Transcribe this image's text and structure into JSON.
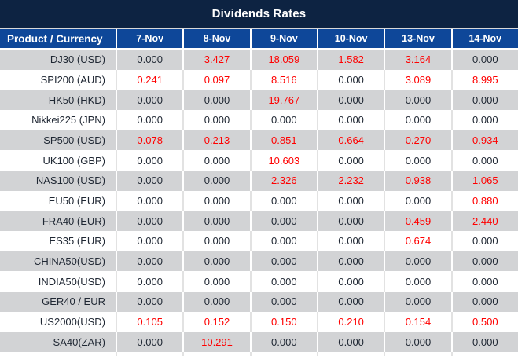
{
  "title": "Dividends Rates",
  "table": {
    "product_header": "Product / Currency",
    "date_headers": [
      "7-Nov",
      "8-Nov",
      "9-Nov",
      "10-Nov",
      "13-Nov",
      "14-Nov"
    ],
    "rows": [
      {
        "product": "DJ30 (USD)",
        "values": [
          "0.000",
          "3.427",
          "18.059",
          "1.582",
          "3.164",
          "0.000"
        ]
      },
      {
        "product": "SPI200 (AUD)",
        "values": [
          "0.241",
          "0.097",
          "8.516",
          "0.000",
          "3.089",
          "8.995"
        ]
      },
      {
        "product": "HK50 (HKD)",
        "values": [
          "0.000",
          "0.000",
          "19.767",
          "0.000",
          "0.000",
          "0.000"
        ]
      },
      {
        "product": "Nikkei225 (JPN)",
        "values": [
          "0.000",
          "0.000",
          "0.000",
          "0.000",
          "0.000",
          "0.000"
        ]
      },
      {
        "product": "SP500 (USD)",
        "values": [
          "0.078",
          "0.213",
          "0.851",
          "0.664",
          "0.270",
          "0.934"
        ]
      },
      {
        "product": "UK100 (GBP)",
        "values": [
          "0.000",
          "0.000",
          "10.603",
          "0.000",
          "0.000",
          "0.000"
        ]
      },
      {
        "product": "NAS100 (USD)",
        "values": [
          "0.000",
          "0.000",
          "2.326",
          "2.232",
          "0.938",
          "1.065"
        ]
      },
      {
        "product": "EU50 (EUR)",
        "values": [
          "0.000",
          "0.000",
          "0.000",
          "0.000",
          "0.000",
          "0.880"
        ]
      },
      {
        "product": "FRA40 (EUR)",
        "values": [
          "0.000",
          "0.000",
          "0.000",
          "0.000",
          "0.459",
          "2.440"
        ]
      },
      {
        "product": "ES35 (EUR)",
        "values": [
          "0.000",
          "0.000",
          "0.000",
          "0.000",
          "0.674",
          "0.000"
        ]
      },
      {
        "product": "CHINA50(USD)",
        "values": [
          "0.000",
          "0.000",
          "0.000",
          "0.000",
          "0.000",
          "0.000"
        ]
      },
      {
        "product": "INDIA50(USD)",
        "values": [
          "0.000",
          "0.000",
          "0.000",
          "0.000",
          "0.000",
          "0.000"
        ]
      },
      {
        "product": "GER40 / EUR",
        "values": [
          "0.000",
          "0.000",
          "0.000",
          "0.000",
          "0.000",
          "0.000"
        ]
      },
      {
        "product": "US2000(USD)",
        "values": [
          "0.105",
          "0.152",
          "0.150",
          "0.210",
          "0.154",
          "0.500"
        ]
      },
      {
        "product": "SA40(ZAR)",
        "values": [
          "0.000",
          "10.291",
          "0.000",
          "0.000",
          "0.000",
          "0.000"
        ]
      }
    ]
  },
  "colors": {
    "title_bg": "#0d2342",
    "header_bg": "#0e4799",
    "header_text": "#ffffff",
    "alt_row_bg": "#d2d3d5",
    "value_text": "#1f2733",
    "nonzero_value": "#ff0000"
  }
}
